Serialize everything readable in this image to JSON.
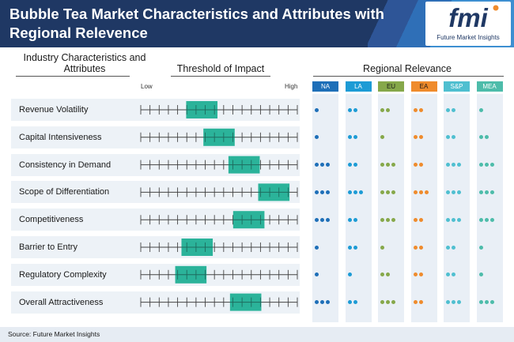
{
  "header": {
    "title": "Bubble Tea Market Characteristics and Attributes with Regional Relevence",
    "logo_text": "Future Market Insights",
    "logo_mark": "fmi"
  },
  "columns": {
    "characteristics": "Industry Characteristics and Attributes",
    "threshold": "Threshold of Impact",
    "regional": "Regional Relevance",
    "low_label": "Low",
    "high_label": "High"
  },
  "chart_data": {
    "type": "table",
    "title": "Bubble Tea Market Characteristics and Attributes with Regional Relevence",
    "threshold_scale": {
      "ticks": 18,
      "min": 0,
      "max": 1,
      "low_label": "Low",
      "high_label": "High"
    },
    "regions": [
      {
        "code": "NA",
        "color": "#1e6fb8"
      },
      {
        "code": "LA",
        "color": "#1c9bd5"
      },
      {
        "code": "EU",
        "color": "#86a84a"
      },
      {
        "code": "EA",
        "color": "#ef8b2c"
      },
      {
        "code": "S&P",
        "color": "#4fbfd0"
      },
      {
        "code": "MEA",
        "color": "#4dbcaa"
      }
    ],
    "rows": [
      {
        "label": "Revenue Volatility",
        "impact_start": 0.29,
        "impact_end": 0.49,
        "regional": [
          1,
          2,
          2,
          2,
          2,
          1
        ]
      },
      {
        "label": "Capital Intensiveness",
        "impact_start": 0.4,
        "impact_end": 0.6,
        "regional": [
          1,
          2,
          1,
          2,
          2,
          2
        ]
      },
      {
        "label": "Consistency in Demand",
        "impact_start": 0.56,
        "impact_end": 0.76,
        "regional": [
          3,
          2,
          3,
          2,
          3,
          3
        ]
      },
      {
        "label": "Scope of Differentiation",
        "impact_start": 0.75,
        "impact_end": 0.95,
        "regional": [
          3,
          3,
          3,
          3,
          3,
          3
        ]
      },
      {
        "label": "Competitiveness",
        "impact_start": 0.59,
        "impact_end": 0.79,
        "regional": [
          3,
          2,
          3,
          2,
          3,
          3
        ]
      },
      {
        "label": "Barrier to Entry",
        "impact_start": 0.26,
        "impact_end": 0.46,
        "regional": [
          1,
          2,
          1,
          2,
          2,
          1
        ]
      },
      {
        "label": "Regulatory Complexity",
        "impact_start": 0.22,
        "impact_end": 0.42,
        "regional": [
          1,
          1,
          2,
          2,
          2,
          1
        ]
      },
      {
        "label": "Overall Attractiveness",
        "impact_start": 0.57,
        "impact_end": 0.77,
        "regional": [
          3,
          2,
          3,
          2,
          3,
          3
        ]
      }
    ]
  },
  "source": "Source: Future Market Insights"
}
